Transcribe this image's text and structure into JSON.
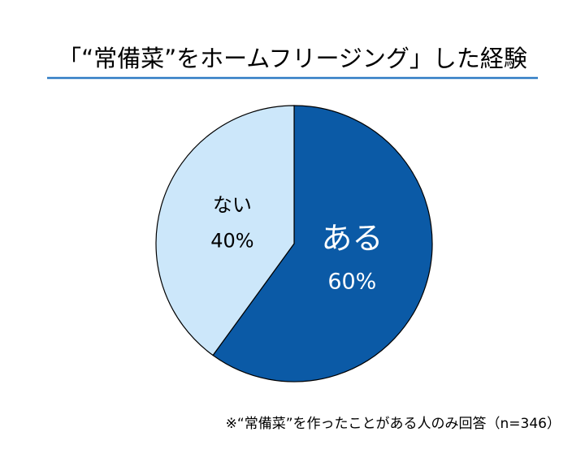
{
  "chart_data": {
    "type": "pie",
    "title": "「“常備菜”をホームフリージング」した経験",
    "categories": [
      "ある",
      "ない"
    ],
    "values": [
      60,
      40
    ],
    "value_labels": [
      "60%",
      "40%"
    ],
    "colors": [
      "#0b5aa6",
      "#cce7fa"
    ],
    "note": "※“常備菜”を作ったことがある人のみ回答（n=346）"
  }
}
